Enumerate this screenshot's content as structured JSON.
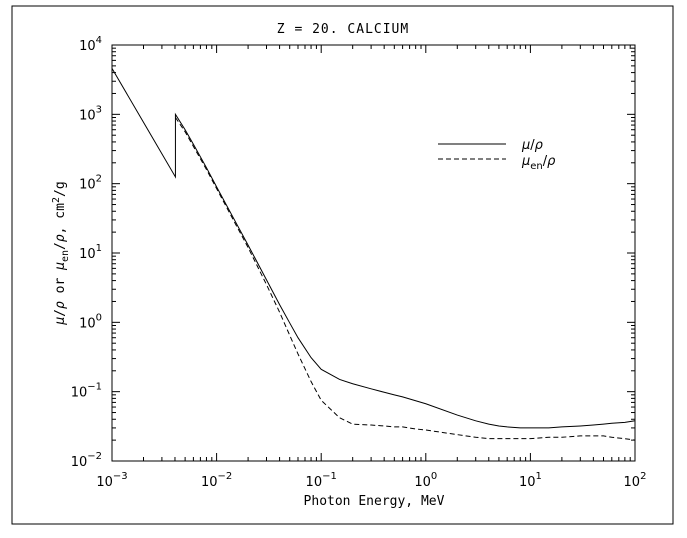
{
  "chart_data": {
    "type": "line",
    "title": "Z = 20.  CALCIUM",
    "xlabel": "Photon Energy, MeV",
    "ylabel": "μ/ρ or μen/ρ, cm²/g",
    "xscale": "log",
    "yscale": "log",
    "xlim": [
      0.001,
      100
    ],
    "ylim": [
      0.01,
      10000
    ],
    "x_ticks": [
      {
        "base": "10",
        "exp": "-3"
      },
      {
        "base": "10",
        "exp": "-2"
      },
      {
        "base": "10",
        "exp": "-1"
      },
      {
        "base": "10",
        "exp": "0"
      },
      {
        "base": "10",
        "exp": "1"
      },
      {
        "base": "10",
        "exp": "2"
      }
    ],
    "y_ticks": [
      {
        "base": "10",
        "exp": "-2"
      },
      {
        "base": "10",
        "exp": "-1"
      },
      {
        "base": "10",
        "exp": "0"
      },
      {
        "base": "10",
        "exp": "1"
      },
      {
        "base": "10",
        "exp": "2"
      },
      {
        "base": "10",
        "exp": "3"
      },
      {
        "base": "10",
        "exp": "4"
      }
    ],
    "legend": {
      "placement": "upper-right"
    },
    "series": [
      {
        "name": "μ/ρ",
        "style": "solid",
        "color": "#000000",
        "x": [
          0.001,
          0.00404,
          0.00404,
          0.005,
          0.006,
          0.008,
          0.01,
          0.015,
          0.02,
          0.03,
          0.04,
          0.05,
          0.06,
          0.08,
          0.1,
          0.15,
          0.2,
          0.3,
          0.4,
          0.5,
          0.6,
          0.8,
          1,
          2,
          3,
          4,
          5,
          6,
          8,
          10,
          15,
          20,
          30,
          40,
          50,
          60,
          80,
          100
        ],
        "y": [
          4600,
          125,
          1000,
          600,
          370,
          170,
          90,
          29,
          13,
          4.1,
          1.8,
          0.98,
          0.6,
          0.31,
          0.21,
          0.15,
          0.13,
          0.11,
          0.098,
          0.09,
          0.084,
          0.074,
          0.067,
          0.046,
          0.038,
          0.034,
          0.032,
          0.031,
          0.03,
          0.03,
          0.03,
          0.031,
          0.032,
          0.033,
          0.034,
          0.035,
          0.036,
          0.038
        ]
      },
      {
        "name": "μen/ρ",
        "style": "dashed",
        "color": "#000000",
        "x": [
          0.00404,
          0.005,
          0.006,
          0.008,
          0.01,
          0.015,
          0.02,
          0.03,
          0.04,
          0.05,
          0.06,
          0.08,
          0.1,
          0.15,
          0.2,
          0.3,
          0.4,
          0.5,
          0.6,
          0.8,
          1,
          2,
          3,
          4,
          5,
          6,
          8,
          10,
          15,
          20,
          30,
          40,
          50,
          60,
          80,
          100
        ],
        "y": [
          900,
          560,
          345,
          160,
          85,
          27,
          12,
          3.5,
          1.4,
          0.65,
          0.35,
          0.14,
          0.075,
          0.042,
          0.034,
          0.033,
          0.032,
          0.031,
          0.031,
          0.029,
          0.028,
          0.024,
          0.022,
          0.021,
          0.021,
          0.021,
          0.021,
          0.021,
          0.022,
          0.022,
          0.023,
          0.023,
          0.023,
          0.022,
          0.021,
          0.02
        ]
      }
    ]
  }
}
